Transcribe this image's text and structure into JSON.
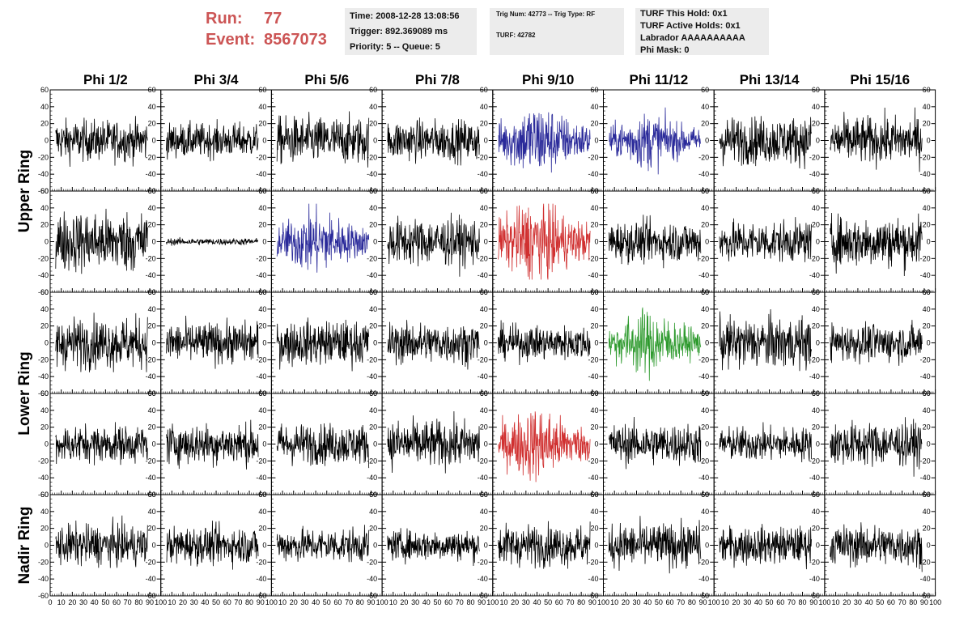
{
  "header": {
    "run_label": "Run:",
    "run_value": "77",
    "event_label": "Event:",
    "event_value": "8567073",
    "time": "Time: 2008-12-28 13:08:56",
    "trigger": "Trigger: 892.369089 ms",
    "priority": "Priority: 5 -- Queue: 5",
    "trig_num": "Trig Num: 42773 -- Trig Type: RF",
    "turf": "TURF: 42782",
    "turf_this_hold": "TURF This Hold: 0x1",
    "turf_active_holds": "TURF Active Holds: 0x1",
    "labrador": "Labrador AAAAAAAAAA",
    "phi_mask": "Phi Mask: 0"
  },
  "columns": [
    "Phi 1/2",
    "Phi 3/4",
    "Phi 5/6",
    "Phi 7/8",
    "Phi 9/10",
    "Phi 11/12",
    "Phi 13/14",
    "Phi 15/16"
  ],
  "ring_labels": [
    "Upper Ring",
    "Lower Ring",
    "Nadir Ring"
  ],
  "colors": {
    "default": "#000000",
    "blue": "#2a2a9a",
    "red": "#d03030",
    "green": "#2e9a2e",
    "header_red": "#cc5555",
    "box_bg": "#ececec"
  },
  "chart_data": {
    "type": "line",
    "title": "",
    "xlabel": "",
    "ylabel": "",
    "xlim": [
      0,
      100
    ],
    "ylim": [
      -60,
      60
    ],
    "x_ticks": [
      0,
      10,
      20,
      30,
      40,
      50,
      60,
      70,
      80,
      90,
      100
    ],
    "x_tick_labels": [
      "0",
      "10",
      "20",
      "30",
      "40",
      "50",
      "60",
      "70",
      "80",
      "90",
      "100"
    ],
    "y_ticks": [
      -60,
      -40,
      -20,
      0,
      20,
      40,
      60
    ],
    "y_tick_labels": [
      "-60",
      "-40",
      "-20",
      "0",
      "20",
      "40",
      "60"
    ],
    "grid": false,
    "rows": 5,
    "cols": 8,
    "panel_amplitudes": [
      [
        12,
        10,
        14,
        12,
        16,
        12,
        14,
        14
      ],
      [
        18,
        2,
        14,
        14,
        18,
        12,
        12,
        15
      ],
      [
        15,
        12,
        13,
        12,
        10,
        14,
        15,
        11
      ],
      [
        11,
        12,
        12,
        14,
        16,
        12,
        10,
        13
      ],
      [
        12,
        11,
        10,
        9,
        12,
        13,
        11,
        12
      ]
    ],
    "panel_colors": [
      [
        "default",
        "default",
        "default",
        "default",
        "blue",
        "blue",
        "default",
        "default"
      ],
      [
        "default",
        "default",
        "blue",
        "default",
        "red",
        "default",
        "default",
        "default"
      ],
      [
        "default",
        "default",
        "default",
        "default",
        "default",
        "green",
        "default",
        "default"
      ],
      [
        "default",
        "default",
        "default",
        "default",
        "red",
        "default",
        "default",
        "default"
      ],
      [
        "default",
        "default",
        "default",
        "default",
        "default",
        "default",
        "default",
        "default"
      ]
    ]
  }
}
